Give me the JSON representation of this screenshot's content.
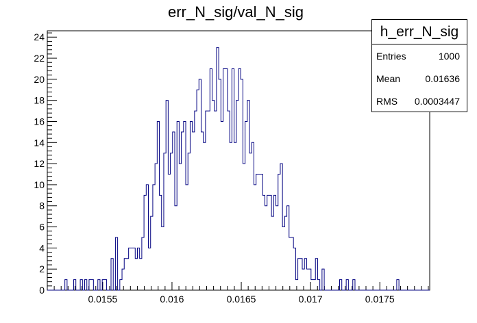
{
  "chart_data": {
    "type": "bar",
    "title": "err_N_sig/val_N_sig",
    "xlabel": "",
    "ylabel": "",
    "xlim": [
      0.0151,
      0.01786
    ],
    "ylim": [
      0,
      24.6
    ],
    "x_tick_labels": [
      "0.0155",
      "0.016",
      "0.0165",
      "0.017",
      "0.0175"
    ],
    "x_ticks": [
      0.0155,
      0.016,
      0.0165,
      0.017,
      0.0175
    ],
    "y_ticks": [
      0,
      2,
      4,
      6,
      8,
      10,
      12,
      14,
      16,
      18,
      20,
      22,
      24
    ],
    "y_tick_labels": [
      "0",
      "2",
      "4",
      "6",
      "8",
      "10",
      "12",
      "14",
      "16",
      "18",
      "20",
      "22",
      "24"
    ],
    "bin_range": [
      0.0151,
      0.01786
    ],
    "values": [
      0,
      0,
      0,
      0,
      0,
      0,
      0,
      0,
      1,
      0,
      0,
      0,
      1,
      0,
      0,
      1,
      0,
      1,
      0,
      1,
      1,
      0,
      0,
      1,
      0,
      1,
      1,
      0,
      0,
      3,
      0,
      5,
      0,
      1,
      2,
      3,
      3,
      4,
      4,
      4,
      3,
      4,
      3,
      5,
      9,
      10,
      4,
      7,
      10,
      12,
      16,
      9,
      6,
      13,
      18,
      11,
      13,
      15,
      8,
      16,
      12,
      15,
      16,
      10,
      13,
      16,
      15,
      17,
      19,
      20,
      15,
      14,
      17,
      17,
      21,
      18,
      17,
      23,
      20,
      16,
      21,
      21,
      17,
      14,
      21,
      14,
      18,
      21,
      20,
      12,
      16,
      18,
      13,
      14,
      10,
      11,
      11,
      11,
      9,
      8,
      9,
      9,
      7,
      9,
      8,
      11,
      12,
      6,
      7,
      8,
      5,
      5,
      4,
      1,
      3,
      3,
      2,
      3,
      2,
      2,
      1,
      1,
      3,
      1,
      0,
      2,
      0,
      0,
      0,
      0,
      0,
      0,
      0,
      1,
      0,
      0,
      1,
      0,
      0,
      1,
      0,
      0,
      0,
      0,
      0,
      0,
      0,
      0,
      0,
      0,
      0,
      0,
      0,
      0,
      0,
      0,
      0,
      0,
      0,
      1,
      0,
      0,
      0,
      0,
      0,
      0,
      0,
      0,
      0,
      0,
      0,
      0,
      0,
      0
    ],
    "colors": {
      "line": "#000080",
      "axis": "#000000",
      "text": "#000000"
    }
  },
  "stats_box": {
    "name": "h_err_N_sig",
    "rows": [
      {
        "key": "Entries",
        "value": "1000"
      },
      {
        "key": "Mean",
        "value": "0.01636"
      },
      {
        "key": "RMS",
        "value": "0.0003447"
      }
    ]
  }
}
